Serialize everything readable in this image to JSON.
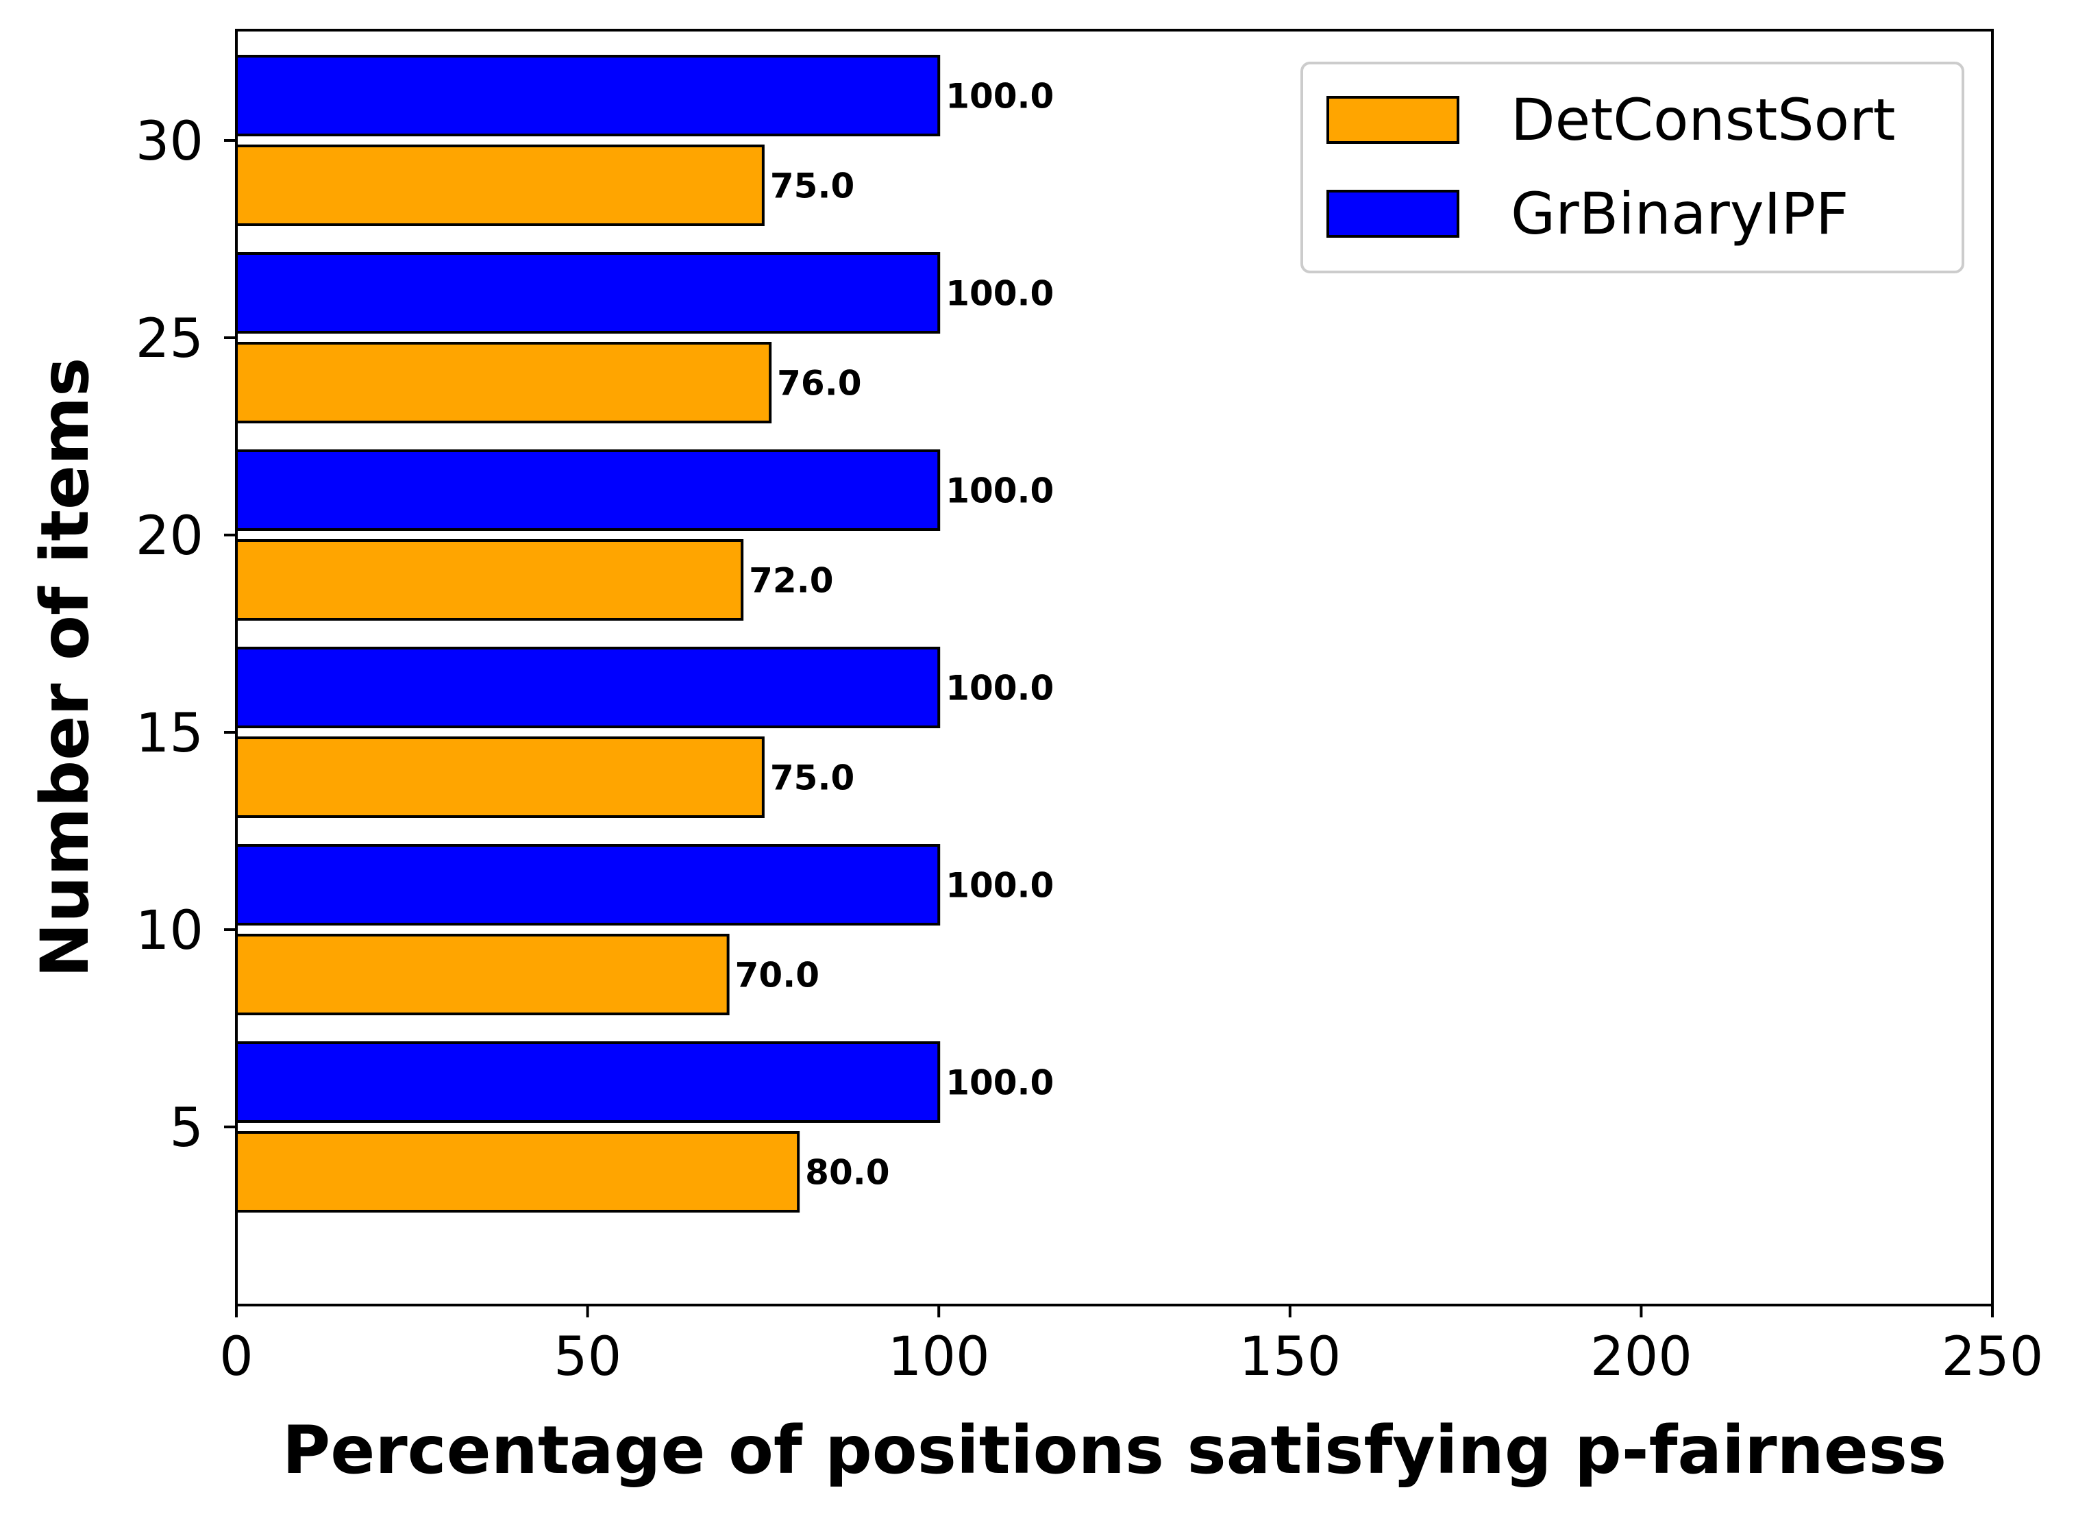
{
  "chart_data": {
    "type": "bar",
    "orientation": "horizontal",
    "categories": [
      "5",
      "10",
      "15",
      "20",
      "25",
      "30"
    ],
    "series": [
      {
        "name": "DetConstSort",
        "color": "#FFA500",
        "values": [
          80.0,
          70.0,
          75.0,
          72.0,
          76.0,
          75.0
        ]
      },
      {
        "name": "GrBinaryIPF",
        "color": "#0000FF",
        "values": [
          100.0,
          100.0,
          100.0,
          100.0,
          100.0,
          100.0
        ]
      }
    ],
    "value_labels": {
      "DetConstSort": [
        "80.0",
        "70.0",
        "75.0",
        "72.0",
        "76.0",
        "75.0"
      ],
      "GrBinaryIPF": [
        "100.0",
        "100.0",
        "100.0",
        "100.0",
        "100.0",
        "100.0"
      ]
    },
    "title": "",
    "xlabel": "Percentage of positions satisfying p-fairness",
    "ylabel": "Number of items",
    "xlim": [
      0,
      250
    ],
    "xticks": [
      0,
      50,
      100,
      150,
      200,
      250
    ],
    "xtick_labels": [
      "0",
      "50",
      "100",
      "150",
      "200",
      "250"
    ],
    "grid": false,
    "legend_position": "upper right"
  }
}
